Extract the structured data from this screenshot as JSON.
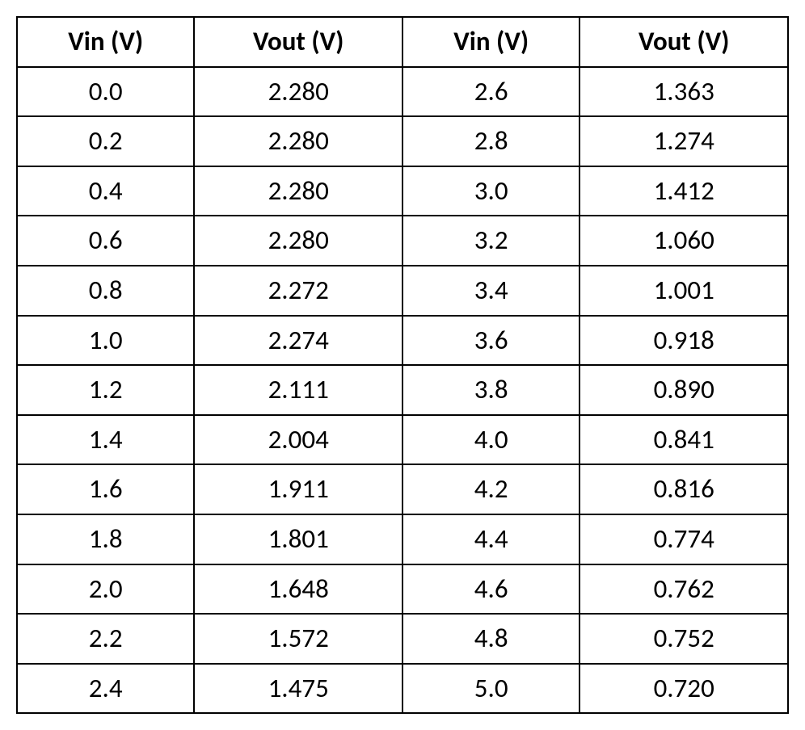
{
  "table": {
    "type": "table",
    "columns": [
      "Vin (V)",
      "Vout (V)",
      "Vin (V)",
      "Vout (V)"
    ],
    "column_widths_percent": [
      23,
      27,
      23,
      27
    ],
    "header_font_weight": "bold",
    "header_fontsize": 33,
    "cell_fontsize": 33,
    "cell_font_weight": "normal",
    "text_color": "#000000",
    "border_color": "#000000",
    "border_width": 2,
    "background_color": "#ffffff",
    "rows": [
      [
        "0.0",
        "2.280",
        "2.6",
        "1.363"
      ],
      [
        "0.2",
        "2.280",
        "2.8",
        "1.274"
      ],
      [
        "0.4",
        "2.280",
        "3.0",
        "1.412"
      ],
      [
        "0.6",
        "2.280",
        "3.2",
        "1.060"
      ],
      [
        "0.8",
        "2.272",
        "3.4",
        "1.001"
      ],
      [
        "1.0",
        "2.274",
        "3.6",
        "0.918"
      ],
      [
        "1.2",
        "2.111",
        "3.8",
        "0.890"
      ],
      [
        "1.4",
        "2.004",
        "4.0",
        "0.841"
      ],
      [
        "1.6",
        "1.911",
        "4.2",
        "0.816"
      ],
      [
        "1.8",
        "1.801",
        "4.4",
        "0.774"
      ],
      [
        "2.0",
        "1.648",
        "4.6",
        "0.762"
      ],
      [
        "2.2",
        "1.572",
        "4.8",
        "0.752"
      ],
      [
        "2.4",
        "1.475",
        "5.0",
        "0.720"
      ]
    ]
  }
}
